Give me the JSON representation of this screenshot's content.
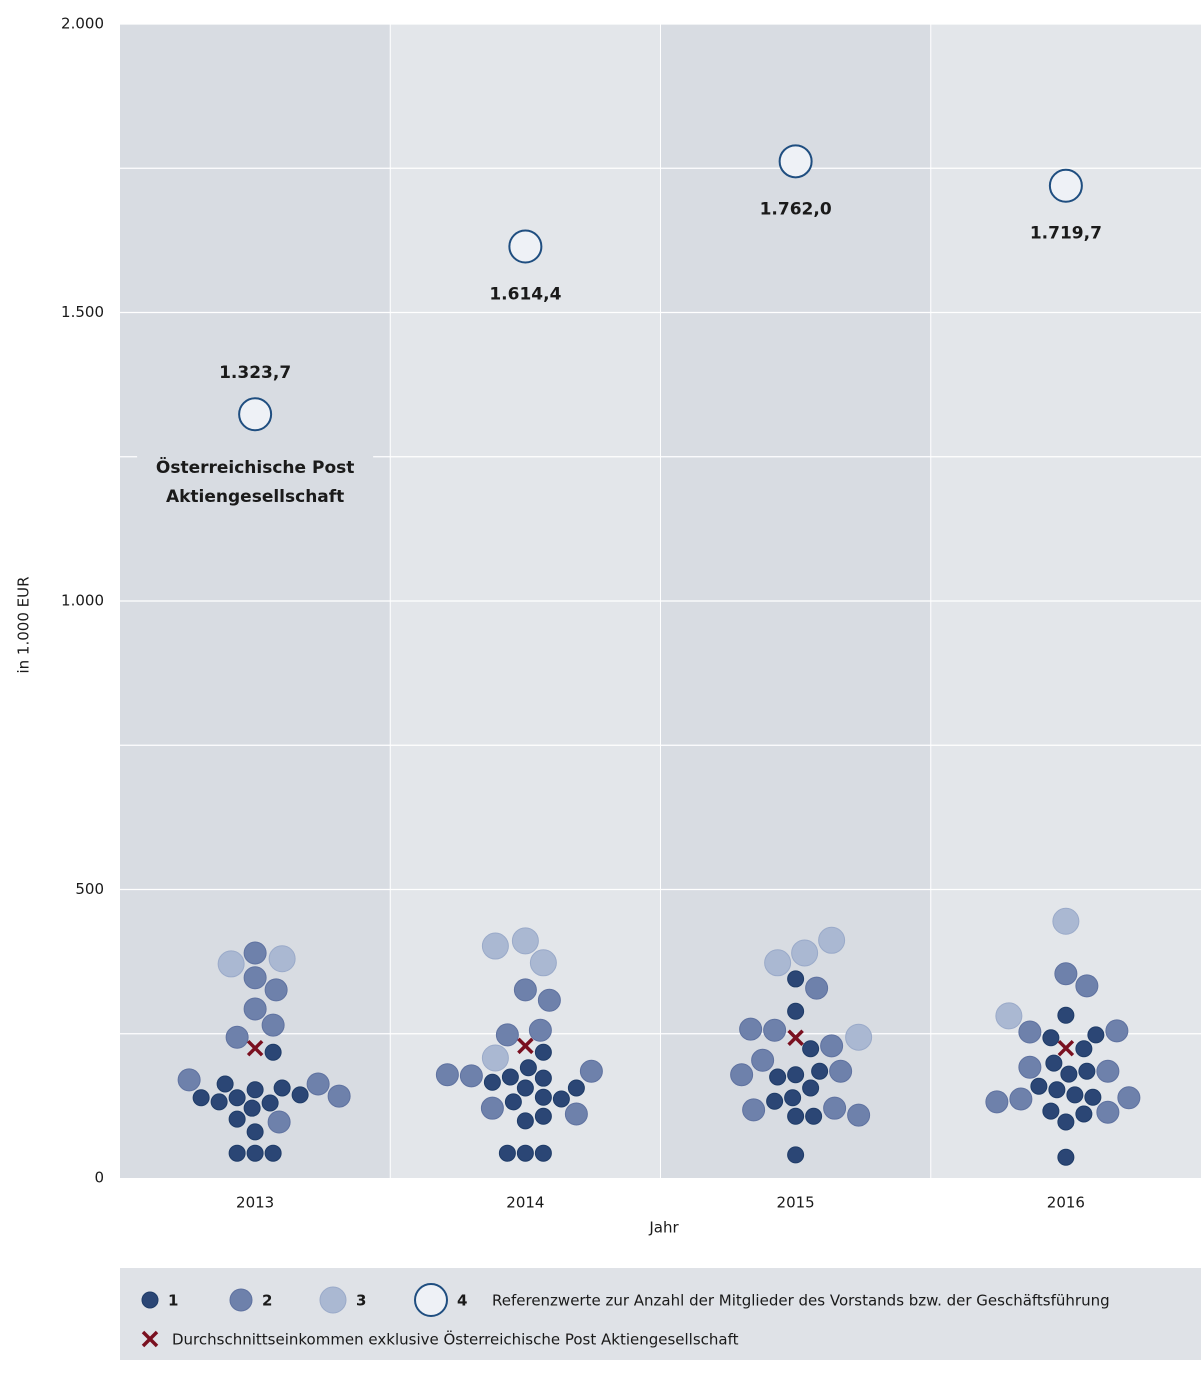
{
  "chart_data": {
    "type": "scatter",
    "y_label": "in 1.000 EUR",
    "x_label": "Jahr",
    "categories": [
      "2013",
      "2014",
      "2015",
      "2016"
    ],
    "ylim": [
      0,
      2000
    ],
    "yticks": [
      0,
      500,
      {
        "value": 1000,
        "label": "1.000"
      },
      {
        "value": 1500,
        "label": "1.500"
      },
      {
        "value": 2000,
        "label": "2.000"
      }
    ],
    "minor_yticks": [
      250,
      750,
      1250,
      1750
    ],
    "grid": true,
    "annotation": [
      "Österreichische Post",
      "Aktiengesellschaft"
    ],
    "legend_note": "Referenzwerte zur Anzahl der Mitglieder des Vorstands bzw. der Geschäftsführung",
    "series": [
      {
        "name": "1",
        "color": "#2b4675",
        "x": [
          "2013",
          "2013",
          "2013",
          "2013",
          "2013",
          "2013",
          "2013",
          "2013",
          "2013",
          "2013",
          "2013",
          "2013",
          "2013",
          "2013",
          "2013",
          "2014",
          "2014",
          "2014",
          "2014",
          "2014",
          "2014",
          "2014",
          "2014",
          "2014",
          "2014",
          "2014",
          "2014",
          "2014",
          "2014",
          "2014",
          "2015",
          "2015",
          "2015",
          "2015",
          "2015",
          "2015",
          "2015",
          "2015",
          "2015",
          "2015",
          "2015",
          "2015",
          "2016",
          "2016",
          "2016",
          "2016",
          "2016",
          "2016",
          "2016",
          "2016",
          "2016",
          "2016",
          "2016",
          "2016",
          "2016",
          "2016",
          "2016"
        ],
        "values": [
          218,
          153,
          130,
          139,
          156,
          163,
          132,
          121,
          144,
          80,
          43,
          43,
          139,
          102,
          43,
          218,
          156,
          140,
          173,
          175,
          132,
          166,
          137,
          191,
          156,
          99,
          43,
          43,
          43,
          107,
          345,
          289,
          224,
          179,
          156,
          175,
          185,
          139,
          133,
          40,
          107,
          107,
          282,
          224,
          243,
          248,
          199,
          180,
          185,
          153,
          144,
          159,
          97,
          36,
          116,
          140,
          111
        ]
      },
      {
        "name": "2",
        "color": "#6e81ab",
        "x": [
          "2013",
          "2013",
          "2013",
          "2013",
          "2013",
          "2013",
          "2013",
          "2013",
          "2013",
          "2013",
          "2014",
          "2014",
          "2014",
          "2014",
          "2014",
          "2014",
          "2014",
          "2014",
          "2014",
          "2015",
          "2015",
          "2015",
          "2015",
          "2015",
          "2015",
          "2015",
          "2015",
          "2015",
          "2015",
          "2016",
          "2016",
          "2016",
          "2016",
          "2016",
          "2016",
          "2016",
          "2016",
          "2016",
          "2016"
        ],
        "values": [
          390,
          347,
          326,
          293,
          244,
          265,
          163,
          170,
          97,
          142,
          177,
          185,
          248,
          179,
          121,
          256,
          326,
          111,
          308,
          256,
          204,
          229,
          329,
          185,
          121,
          118,
          258,
          109,
          179,
          354,
          333,
          253,
          255,
          192,
          137,
          114,
          139,
          132,
          185
        ]
      },
      {
        "name": "3",
        "color": "#aab8d2",
        "x": [
          "2013",
          "2013",
          "2014",
          "2014",
          "2014",
          "2014",
          "2015",
          "2015",
          "2015",
          "2015",
          "2016",
          "2016"
        ],
        "values": [
          380,
          371,
          411,
          373,
          402,
          208,
          373,
          390,
          412,
          244,
          445,
          281
        ]
      },
      {
        "name": "4",
        "color": "#eef1f6",
        "x": [
          "2013",
          "2014",
          "2015",
          "2016"
        ],
        "values": [
          1323.7,
          1614.4,
          1762.0,
          1719.7
        ],
        "value_labels": [
          "1.323,7",
          "1.614,4",
          "1.762,0",
          "1.719,7"
        ]
      },
      {
        "name": "Durchschnittseinkommen exklusive Österreichische Post Aktiengesellschaft",
        "color": "#7a1020",
        "marker": "x",
        "x": [
          "2013",
          "2014",
          "2015",
          "2016"
        ],
        "values": [
          225,
          229,
          243,
          225
        ]
      }
    ]
  }
}
